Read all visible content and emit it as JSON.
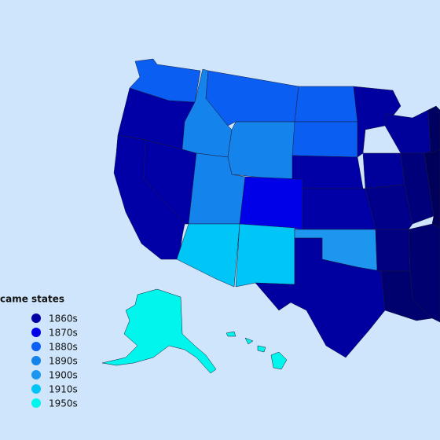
{
  "legend": {
    "title": "came states",
    "items": [
      {
        "label": "1860s",
        "color": "#0000a6"
      },
      {
        "label": "1870s",
        "color": "#0000e8"
      },
      {
        "label": "1880s",
        "color": "#0a5ef2"
      },
      {
        "label": "1890s",
        "color": "#1483ec"
      },
      {
        "label": "1900s",
        "color": "#1d96f0"
      },
      {
        "label": "1910s",
        "color": "#00c6f8"
      },
      {
        "label": "1950s",
        "color": "#00f5ec"
      }
    ]
  }
}
